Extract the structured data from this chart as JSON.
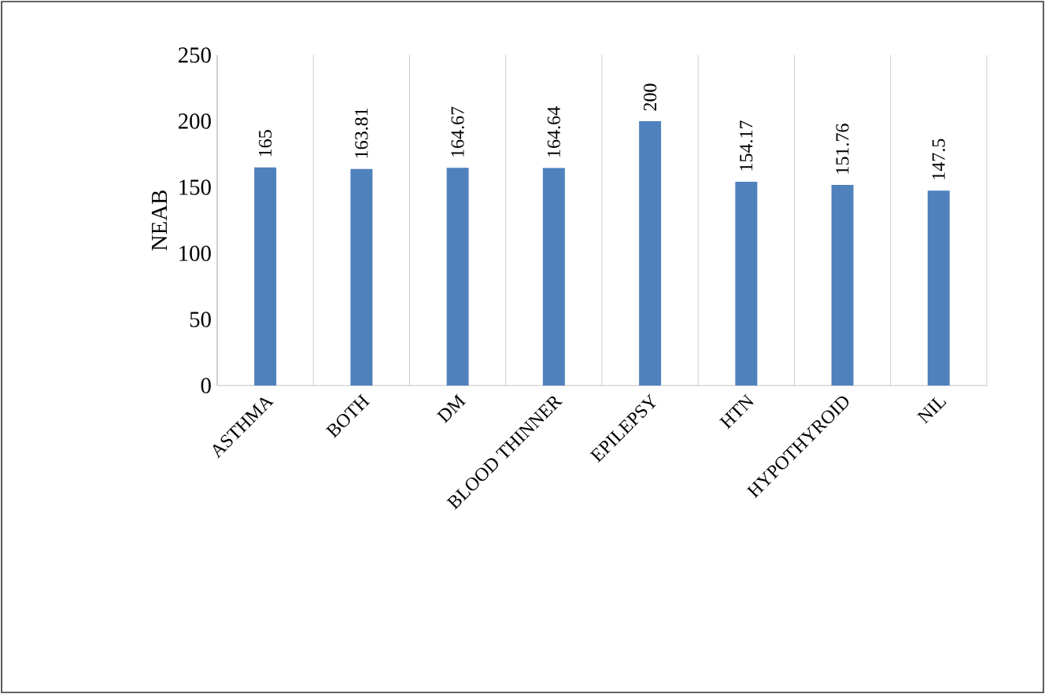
{
  "chart_data": {
    "type": "bar",
    "ylabel": "NEAB",
    "categories": [
      "ASTHMA",
      "BOTH",
      "DM",
      "BLOOD THINNER",
      "EPILEPSY",
      "HTN",
      "HYPOTHYROID",
      "NIL"
    ],
    "values": [
      165,
      163.81,
      164.67,
      164.64,
      200,
      154.17,
      151.76,
      147.5
    ],
    "color": "#4f81bd",
    "ylim": [
      0,
      250
    ],
    "yticks": [
      0,
      50,
      100,
      150,
      200,
      250
    ],
    "grid": "x",
    "data_labels": true
  }
}
